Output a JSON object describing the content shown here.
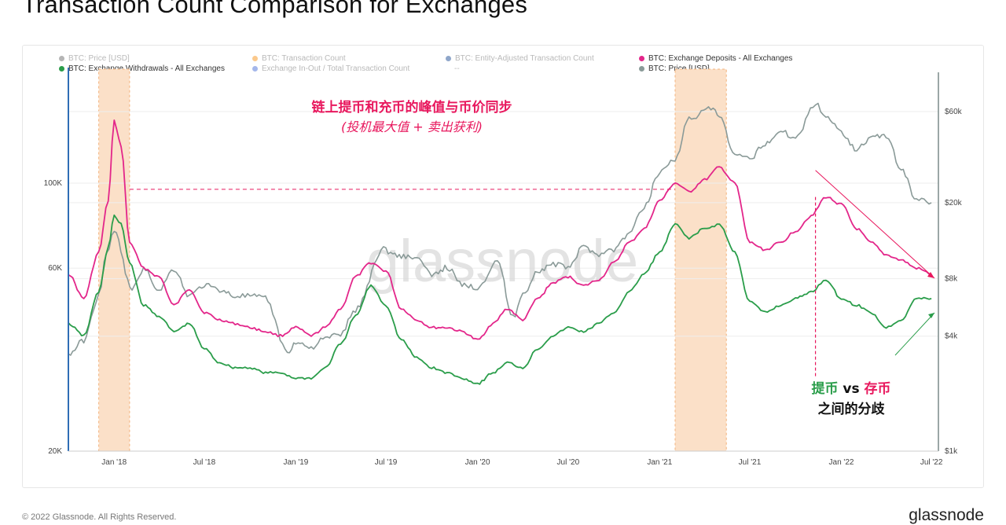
{
  "page": {
    "title": "Transaction Count Comparison for Exchanges",
    "copyright": "© 2022 Glassnode. All Rights Reserved.",
    "brand": "glassnode",
    "watermark": "glassnode"
  },
  "legend": [
    {
      "label": "BTC: Price [USD]",
      "color": "#6b6b6b",
      "active": false
    },
    {
      "label": "BTC: Transaction Count",
      "color": "#f7931a",
      "active": false
    },
    {
      "label": "BTC: Entity-Adjusted Transaction Count",
      "color": "#1f4e96",
      "active": false
    },
    {
      "label": "BTC: Exchange Deposits - All Exchanges",
      "color": "#e3268a",
      "active": true
    },
    {
      "label": "BTC: Exchange Withdrawals - All Exchanges",
      "color": "#2a9d4a",
      "active": true
    },
    {
      "label": "Exchange In-Out / Total Transaction Count",
      "color": "#4a6fd8",
      "active": false
    },
    {
      "label": "--",
      "color": "",
      "active": false
    },
    {
      "label": "BTC: Price [USD]",
      "color": "#8a9a98",
      "active": true
    }
  ],
  "annotations": {
    "peak_title": "链上提币和充币的峰值与币价同步",
    "peak_subtitle": "(投机最大值 + 卖出获利)",
    "divergence_withdraw": "提币",
    "divergence_vs": " vs ",
    "divergence_deposit": "存币",
    "divergence_line2": "之间的分歧"
  },
  "colors": {
    "deposits": "#e3268a",
    "withdrawals": "#2a9d4a",
    "price": "#8a9a98",
    "highlight": "#fbe0c8",
    "highlight_border": "#f3b37c",
    "annotation_pink": "#e8175d",
    "axis_blue": "#2f6db5",
    "grid": "#eeeeee",
    "tick": "#444444"
  },
  "chart_data": {
    "type": "line",
    "x_ticks": [
      "Jan '18",
      "Jul '18",
      "Jan '19",
      "Jul '19",
      "Jan '20",
      "Jul '20",
      "Jan '21",
      "Jul '21",
      "Jan '22",
      "Jul '22"
    ],
    "y_left_ticks": [
      "100K",
      "60K",
      "20K"
    ],
    "y_right_ticks": [
      "$60k",
      "$20k",
      "$8k",
      "$4k",
      "$1k"
    ],
    "left_scale": "log",
    "right_scale": "log",
    "x_range": [
      "2017-10-01",
      "2022-07-15"
    ],
    "series": [
      {
        "name": "BTC: Exchange Deposits - All Exchanges",
        "axis": "left",
        "x": [
          "2017-10-01",
          "2017-11-01",
          "2017-12-01",
          "2017-12-20",
          "2018-01-01",
          "2018-01-15",
          "2018-02-01",
          "2018-03-01",
          "2018-04-01",
          "2018-05-01",
          "2018-06-01",
          "2018-07-01",
          "2018-08-01",
          "2018-09-01",
          "2018-10-01",
          "2018-11-01",
          "2018-12-01",
          "2019-01-01",
          "2019-02-01",
          "2019-03-01",
          "2019-04-01",
          "2019-05-01",
          "2019-06-01",
          "2019-07-01",
          "2019-08-01",
          "2019-09-01",
          "2019-10-01",
          "2019-11-01",
          "2019-12-01",
          "2020-01-01",
          "2020-02-01",
          "2020-03-01",
          "2020-04-01",
          "2020-05-01",
          "2020-06-01",
          "2020-07-01",
          "2020-08-01",
          "2020-09-01",
          "2020-10-01",
          "2020-11-01",
          "2020-12-01",
          "2021-01-01",
          "2021-02-01",
          "2021-03-01",
          "2021-04-01",
          "2021-05-01",
          "2021-06-01",
          "2021-07-01",
          "2021-08-01",
          "2021-09-01",
          "2021-10-01",
          "2021-11-01",
          "2021-12-01",
          "2022-01-01",
          "2022-02-01",
          "2022-03-01",
          "2022-04-01",
          "2022-05-01",
          "2022-06-01",
          "2022-07-01"
        ],
        "values": [
          58000,
          50000,
          66000,
          90000,
          145000,
          125000,
          70000,
          60000,
          57000,
          48000,
          53000,
          46000,
          44000,
          43000,
          42000,
          41000,
          40000,
          42000,
          40000,
          42000,
          47000,
          57000,
          62000,
          59000,
          47000,
          44000,
          42000,
          42000,
          41000,
          39000,
          43000,
          47000,
          44000,
          50000,
          55000,
          57000,
          54000,
          56000,
          62000,
          70000,
          76000,
          90000,
          100000,
          95000,
          102000,
          110000,
          100000,
          70000,
          67000,
          70000,
          75000,
          82000,
          92000,
          88000,
          76000,
          70000,
          65000,
          63000,
          60000,
          58000
        ]
      },
      {
        "name": "BTC: Exchange Withdrawals - All Exchanges",
        "axis": "left",
        "x": [
          "2017-10-01",
          "2017-11-01",
          "2017-12-01",
          "2017-12-20",
          "2018-01-01",
          "2018-01-15",
          "2018-02-01",
          "2018-03-01",
          "2018-04-01",
          "2018-05-01",
          "2018-06-01",
          "2018-07-01",
          "2018-08-01",
          "2018-09-01",
          "2018-10-01",
          "2018-11-01",
          "2018-12-01",
          "2019-01-01",
          "2019-02-01",
          "2019-03-01",
          "2019-04-01",
          "2019-05-01",
          "2019-06-01",
          "2019-07-01",
          "2019-08-01",
          "2019-09-01",
          "2019-10-01",
          "2019-11-01",
          "2019-12-01",
          "2020-01-01",
          "2020-02-01",
          "2020-03-01",
          "2020-04-01",
          "2020-05-01",
          "2020-06-01",
          "2020-07-01",
          "2020-08-01",
          "2020-09-01",
          "2020-10-01",
          "2020-11-01",
          "2020-12-01",
          "2021-01-01",
          "2021-02-01",
          "2021-03-01",
          "2021-04-01",
          "2021-05-01",
          "2021-06-01",
          "2021-07-01",
          "2021-08-01",
          "2021-09-01",
          "2021-10-01",
          "2021-11-01",
          "2021-12-01",
          "2022-01-01",
          "2022-02-01",
          "2022-03-01",
          "2022-04-01",
          "2022-05-01",
          "2022-06-01",
          "2022-07-01"
        ],
        "values": [
          43000,
          40000,
          52000,
          68000,
          82000,
          78000,
          62000,
          48000,
          45000,
          41000,
          43000,
          37000,
          34000,
          33000,
          33000,
          32000,
          32000,
          31000,
          31000,
          33000,
          38000,
          45000,
          54000,
          48000,
          39000,
          35000,
          33000,
          32000,
          31000,
          30000,
          32000,
          34000,
          33000,
          37000,
          40000,
          42000,
          41000,
          43000,
          46000,
          52000,
          58000,
          66000,
          78000,
          72000,
          76000,
          78000,
          66000,
          49000,
          46000,
          48000,
          50000,
          52000,
          56000,
          50000,
          48000,
          46000,
          42000,
          44000,
          50000,
          50000
        ]
      },
      {
        "name": "BTC: Price [USD]",
        "axis": "right",
        "x": [
          "2017-10-01",
          "2017-11-01",
          "2017-12-01",
          "2017-12-17",
          "2018-01-01",
          "2018-02-06",
          "2018-03-01",
          "2018-04-01",
          "2018-05-01",
          "2018-06-01",
          "2018-07-01",
          "2018-08-01",
          "2018-09-01",
          "2018-10-01",
          "2018-11-01",
          "2018-12-15",
          "2019-01-01",
          "2019-02-01",
          "2019-03-01",
          "2019-04-01",
          "2019-05-01",
          "2019-06-26",
          "2019-07-15",
          "2019-08-01",
          "2019-09-01",
          "2019-10-01",
          "2019-11-01",
          "2019-12-01",
          "2020-01-01",
          "2020-02-10",
          "2020-03-12",
          "2020-04-01",
          "2020-05-01",
          "2020-06-01",
          "2020-07-01",
          "2020-08-01",
          "2020-09-01",
          "2020-10-01",
          "2020-11-01",
          "2020-12-01",
          "2021-01-01",
          "2021-02-01",
          "2021-03-01",
          "2021-04-14",
          "2021-05-01",
          "2021-06-01",
          "2021-07-01",
          "2021-08-01",
          "2021-09-01",
          "2021-10-01",
          "2021-11-10",
          "2021-12-01",
          "2022-01-01",
          "2022-02-01",
          "2022-03-01",
          "2022-04-01",
          "2022-05-01",
          "2022-06-01",
          "2022-07-01"
        ],
        "values": [
          3200,
          3800,
          6500,
          11000,
          14000,
          7000,
          9000,
          7000,
          9000,
          6500,
          7400,
          7000,
          6500,
          6500,
          6300,
          3300,
          3700,
          3500,
          3900,
          4100,
          5500,
          11500,
          10800,
          10500,
          10300,
          8300,
          9200,
          7400,
          7200,
          10000,
          5000,
          6600,
          8800,
          9500,
          9200,
          11700,
          10800,
          11400,
          13800,
          19000,
          29000,
          34000,
          55000,
          62000,
          57000,
          35000,
          34000,
          41000,
          47000,
          44000,
          66000,
          57000,
          47000,
          38000,
          44000,
          45000,
          30000,
          21000,
          20000
        ]
      }
    ],
    "highlights": [
      [
        "2017-12-01",
        "2018-02-01"
      ],
      [
        "2021-02-01",
        "2021-05-15"
      ]
    ]
  }
}
